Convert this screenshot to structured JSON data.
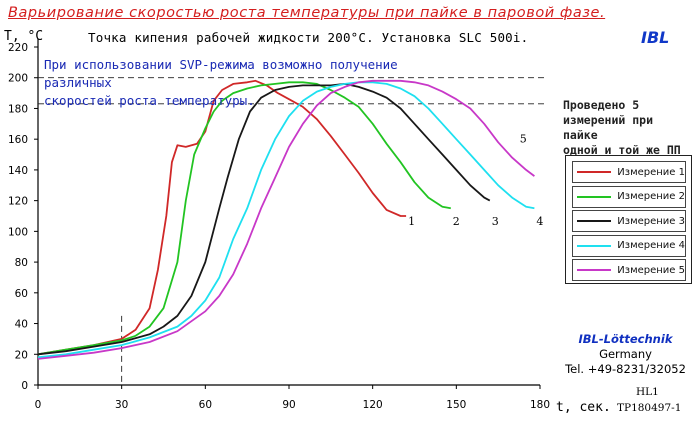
{
  "title": "Варьирование скоростью роста температуры при пайке в паровой фазе.",
  "logo": "IBL",
  "subtitle": "Точка кипения рабочей жидкости 200°C. Установка SLC 500i.",
  "note": [
    "При использовании SVP-режима возможно получение различных",
    "скоростей роста температуры."
  ],
  "side_note": [
    "Проведено 5",
    "измерений при пайке",
    "одной и той же ПП"
  ],
  "company": {
    "name": "IBL-Löttechnik",
    "country": "Germany",
    "phone": "Tel. +49-8231/32052"
  },
  "doc_codes": {
    "hl": "HL1",
    "tp": "TP180497-1"
  },
  "chart_data": {
    "type": "line",
    "xlabel": "t, сек.",
    "ylabel": "T, °C",
    "xlim": [
      0,
      180
    ],
    "ylim": [
      0,
      220
    ],
    "xticks": [
      0,
      30,
      60,
      90,
      120,
      150,
      180
    ],
    "yticks": [
      0,
      20,
      40,
      60,
      80,
      100,
      120,
      140,
      160,
      180,
      200,
      220
    ],
    "reference_lines": {
      "horizontal": [
        200,
        183
      ],
      "vertical": [
        30
      ]
    },
    "legend_placement": "right",
    "series": [
      {
        "name": "Измерение 1",
        "label": "1",
        "color": "#d02828",
        "x": [
          0,
          10,
          20,
          30,
          35,
          40,
          43,
          46,
          48,
          50,
          53,
          57,
          60,
          63,
          66,
          70,
          75,
          78,
          82,
          86,
          90,
          95,
          100,
          105,
          110,
          115,
          120,
          125,
          130,
          132
        ],
        "y": [
          20,
          23,
          26,
          30,
          36,
          50,
          75,
          110,
          145,
          156,
          155,
          157,
          165,
          185,
          192,
          196,
          197,
          198,
          195,
          190,
          186,
          181,
          173,
          162,
          150,
          138,
          125,
          114,
          110,
          110
        ]
      },
      {
        "name": "Измерение 2",
        "label": "2",
        "color": "#22c422",
        "x": [
          0,
          10,
          20,
          30,
          35,
          40,
          45,
          50,
          53,
          56,
          60,
          63,
          66,
          70,
          75,
          80,
          85,
          90,
          95,
          100,
          105,
          110,
          115,
          120,
          125,
          130,
          135,
          140,
          145,
          148
        ],
        "y": [
          20,
          23,
          26,
          29,
          32,
          38,
          50,
          80,
          120,
          150,
          167,
          178,
          185,
          190,
          193,
          195,
          196,
          197,
          197,
          196,
          192,
          187,
          181,
          170,
          157,
          145,
          132,
          122,
          116,
          115
        ]
      },
      {
        "name": "Измерение 3",
        "label": "3",
        "color": "#181818",
        "x": [
          0,
          10,
          20,
          30,
          40,
          45,
          50,
          55,
          60,
          65,
          68,
          72,
          76,
          80,
          85,
          90,
          95,
          100,
          105,
          110,
          115,
          120,
          125,
          130,
          135,
          140,
          145,
          150,
          155,
          160,
          162
        ],
        "y": [
          20,
          22,
          25,
          28,
          33,
          38,
          45,
          58,
          80,
          115,
          135,
          160,
          178,
          187,
          192,
          194,
          195,
          195,
          195,
          196,
          194,
          191,
          187,
          180,
          170,
          160,
          150,
          140,
          130,
          122,
          120
        ]
      },
      {
        "name": "Измерение 4",
        "label": "4",
        "color": "#1ee0f0",
        "x": [
          0,
          10,
          20,
          30,
          40,
          50,
          55,
          60,
          65,
          70,
          75,
          80,
          85,
          90,
          95,
          100,
          105,
          110,
          115,
          120,
          125,
          130,
          135,
          140,
          145,
          150,
          155,
          160,
          165,
          170,
          175,
          178
        ],
        "y": [
          18,
          20,
          23,
          26,
          31,
          38,
          45,
          55,
          70,
          95,
          115,
          140,
          160,
          175,
          185,
          191,
          194,
          196,
          197,
          197,
          196,
          193,
          188,
          180,
          170,
          160,
          150,
          140,
          130,
          122,
          116,
          115
        ]
      },
      {
        "name": "Измерение 5",
        "label": "5",
        "color": "#c838c8",
        "x": [
          0,
          10,
          20,
          30,
          40,
          50,
          60,
          65,
          70,
          75,
          80,
          85,
          90,
          95,
          100,
          105,
          110,
          115,
          120,
          125,
          130,
          135,
          140,
          145,
          150,
          155,
          160,
          165,
          170,
          175,
          178
        ],
        "y": [
          17,
          19,
          21,
          24,
          28,
          35,
          48,
          58,
          72,
          92,
          115,
          135,
          155,
          170,
          182,
          190,
          194,
          197,
          198,
          198,
          198,
          197,
          195,
          191,
          186,
          180,
          170,
          158,
          148,
          140,
          136
        ]
      }
    ]
  }
}
